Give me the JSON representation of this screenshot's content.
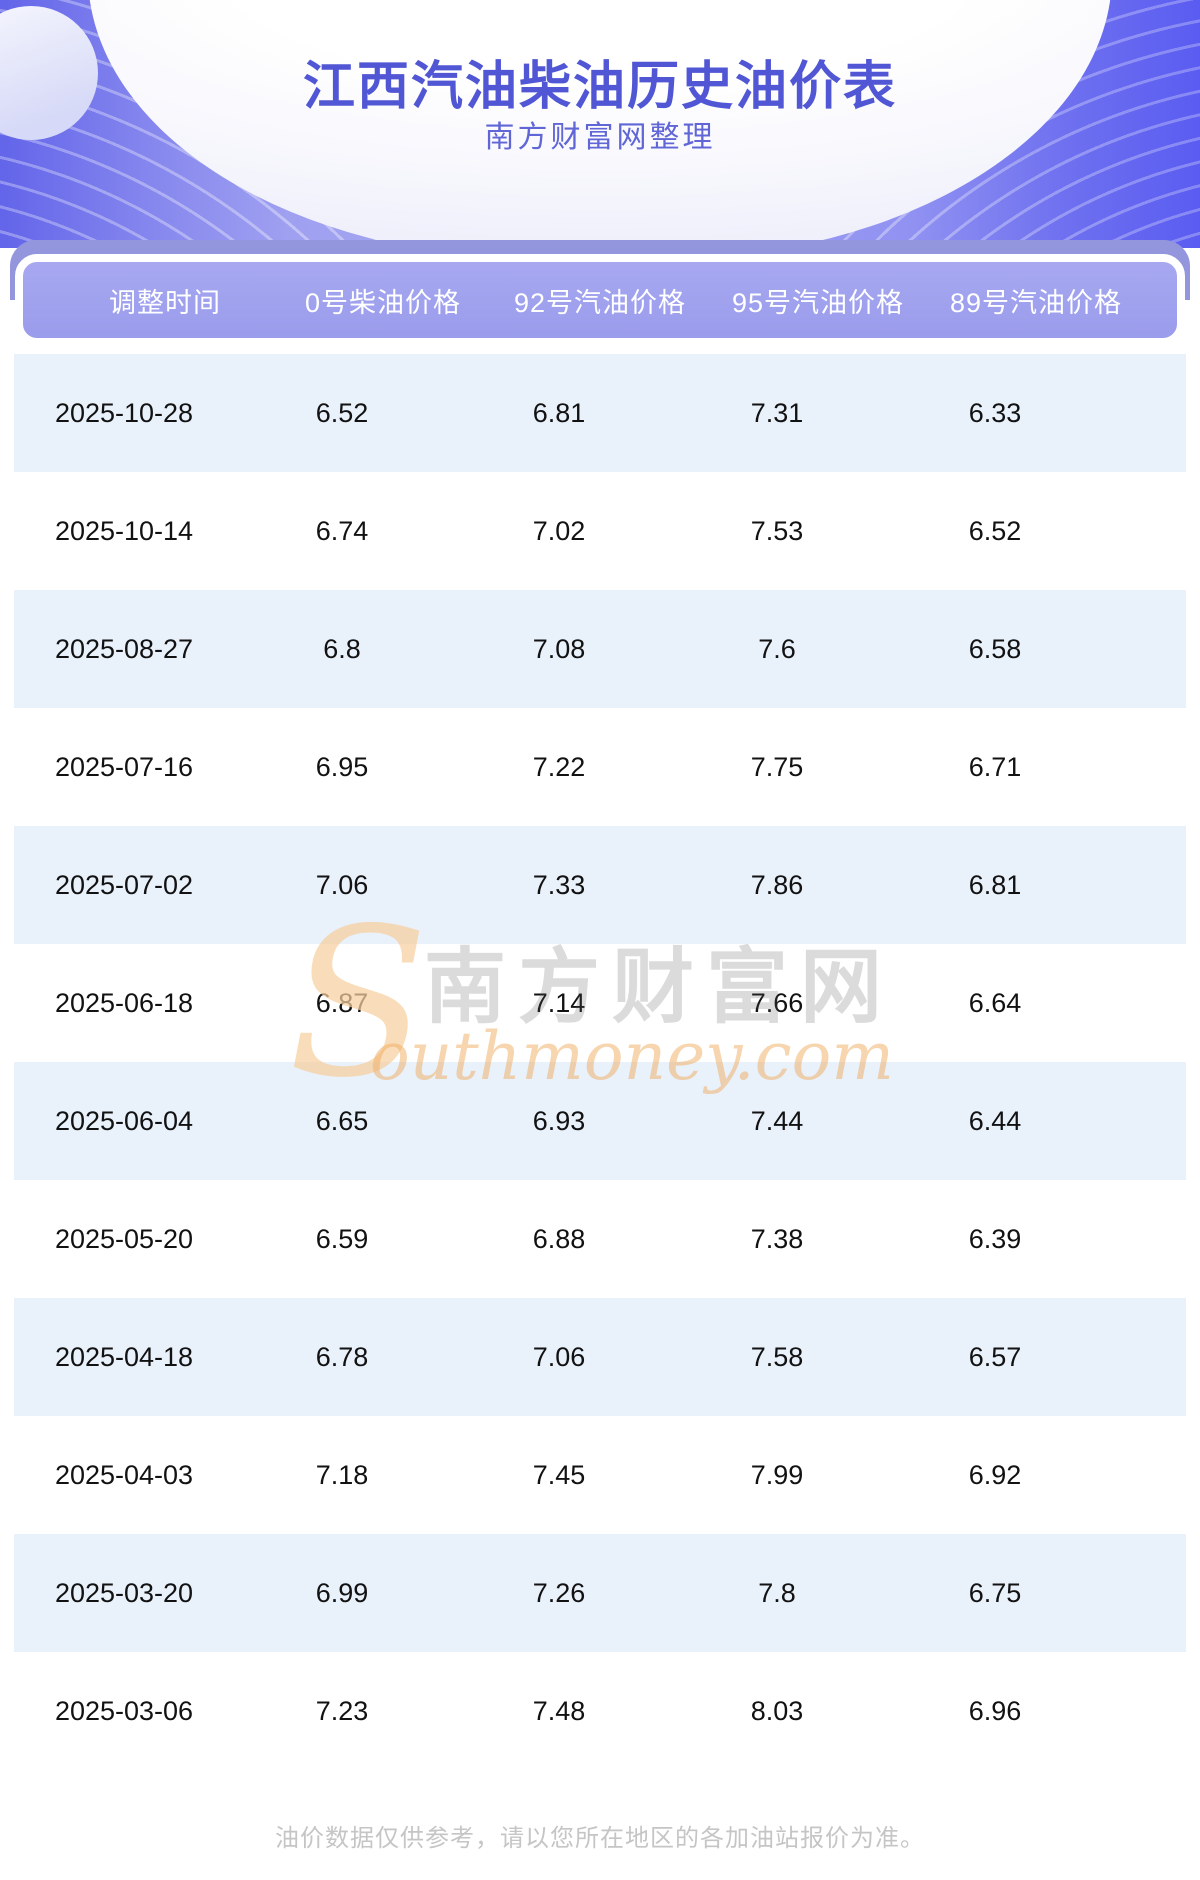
{
  "header": {
    "title": "江西汽油柴油历史油价表",
    "subtitle": "南方财富网整理"
  },
  "table": {
    "columns": [
      "调整时间",
      "0号柴油价格",
      "92号汽油价格",
      "95号汽油价格",
      "89号汽油价格"
    ],
    "rows": [
      {
        "date": "2025-10-28",
        "values": [
          "6.52",
          "6.81",
          "7.31",
          "6.33"
        ]
      },
      {
        "date": "2025-10-14",
        "values": [
          "6.74",
          "7.02",
          "7.53",
          "6.52"
        ]
      },
      {
        "date": "2025-08-27",
        "values": [
          "6.8",
          "7.08",
          "7.6",
          "6.58"
        ]
      },
      {
        "date": "2025-07-16",
        "values": [
          "6.95",
          "7.22",
          "7.75",
          "6.71"
        ]
      },
      {
        "date": "2025-07-02",
        "values": [
          "7.06",
          "7.33",
          "7.86",
          "6.81"
        ]
      },
      {
        "date": "2025-06-18",
        "values": [
          "6.87",
          "7.14",
          "7.66",
          "6.64"
        ]
      },
      {
        "date": "2025-06-04",
        "values": [
          "6.65",
          "6.93",
          "7.44",
          "6.44"
        ]
      },
      {
        "date": "2025-05-20",
        "values": [
          "6.59",
          "6.88",
          "7.38",
          "6.39"
        ]
      },
      {
        "date": "2025-04-18",
        "values": [
          "6.78",
          "7.06",
          "7.58",
          "6.57"
        ]
      },
      {
        "date": "2025-04-03",
        "values": [
          "7.18",
          "7.45",
          "7.99",
          "6.92"
        ]
      },
      {
        "date": "2025-03-20",
        "values": [
          "6.99",
          "7.26",
          "7.8",
          "6.75"
        ]
      },
      {
        "date": "2025-03-06",
        "values": [
          "7.23",
          "7.48",
          "8.03",
          "6.96"
        ]
      }
    ]
  },
  "watermark": {
    "initial": "S",
    "cn": "南方财富网",
    "en": "outhmoney.com"
  },
  "footer": {
    "disclaimer": "油价数据仅供参考，请以您所在地区的各加油站报价为准。"
  },
  "colors": {
    "title_text": "#5157d4",
    "header_band": "#9a9cec",
    "behind_tab": "#9395dd",
    "row_alt": "#e9f1fb",
    "hero_purple": "#6365ea",
    "watermark_orange": "#f7cf9f"
  }
}
